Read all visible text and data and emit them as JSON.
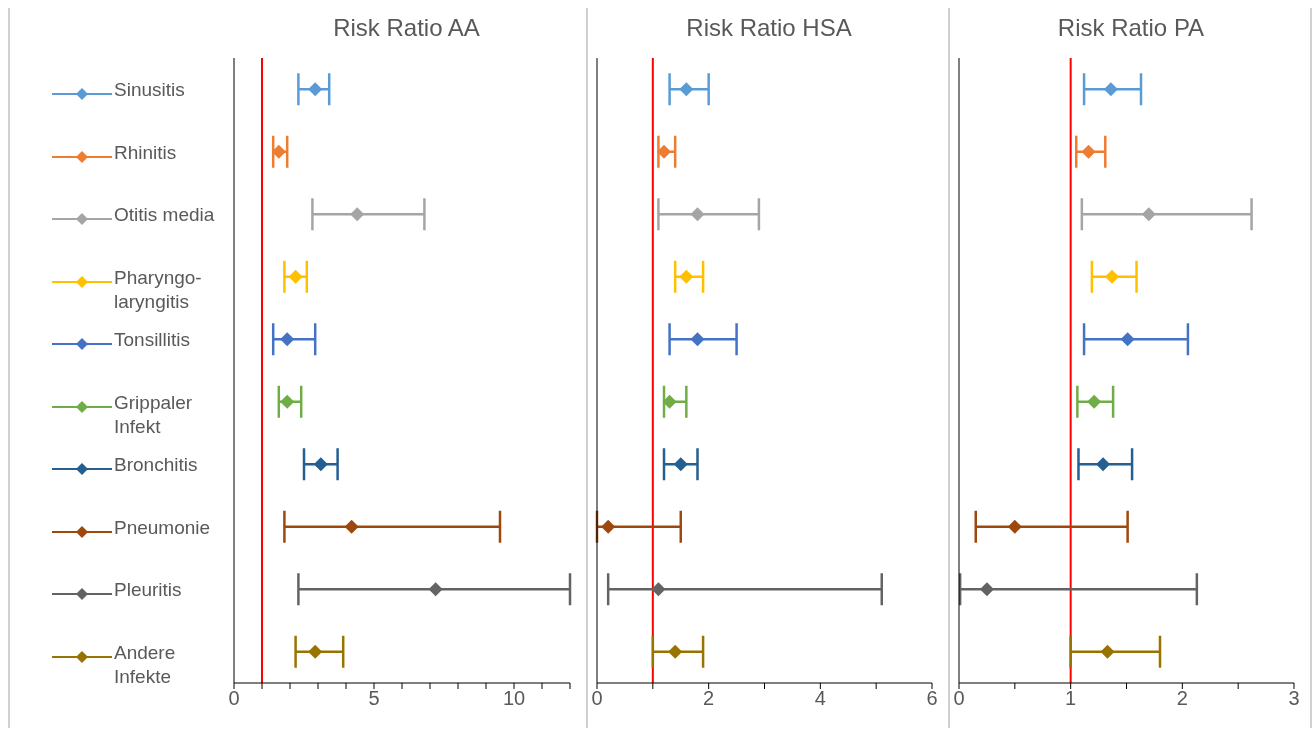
{
  "chart_data": [
    {
      "type": "line",
      "title": "Risk Ratio AA",
      "orientation": "horizontal",
      "categories": [
        null,
        null,
        null,
        null,
        null,
        null,
        null,
        null,
        null,
        null
      ],
      "xlim": [
        0,
        12
      ],
      "xticks": [
        0,
        {
          "value": 1,
          "label": null
        },
        {
          "value": 2,
          "label": null
        },
        {
          "value": 3,
          "label": null
        },
        {
          "value": 4,
          "label": null
        },
        5,
        {
          "value": 6,
          "label": null
        },
        {
          "value": 7,
          "label": null
        },
        {
          "value": 8,
          "label": null
        },
        {
          "value": 9,
          "label": null
        },
        10,
        {
          "value": 11,
          "label": null
        },
        {
          "value": 12,
          "label": null
        }
      ],
      "tick_labels": "x",
      "grid": false,
      "legend": "left",
      "marker": "diamond",
      "line_style": "solid",
      "ref_lines": [
        {
          "axis": "x",
          "value": 1,
          "color": "#ff0000"
        }
      ],
      "series": [
        {
          "name": "Sinusitis",
          "color": "#5b9bd5",
          "values": [
            2.9,
            null,
            null,
            null,
            null,
            null,
            null,
            null,
            null,
            null
          ],
          "errors": [
            [
              2.3,
              3.4
            ],
            null,
            null,
            null,
            null,
            null,
            null,
            null,
            null,
            null
          ]
        },
        {
          "name": "Rhinitis",
          "color": "#ed7d31",
          "values": [
            null,
            1.6,
            null,
            null,
            null,
            null,
            null,
            null,
            null,
            null
          ],
          "errors": [
            null,
            [
              1.4,
              1.9
            ],
            null,
            null,
            null,
            null,
            null,
            null,
            null,
            null
          ]
        },
        {
          "name": "Otitis media",
          "color": "#a5a5a5",
          "values": [
            null,
            null,
            4.4,
            null,
            null,
            null,
            null,
            null,
            null,
            null
          ],
          "errors": [
            null,
            null,
            [
              2.8,
              6.8
            ],
            null,
            null,
            null,
            null,
            null,
            null,
            null
          ]
        },
        {
          "name": "Pharyngo-laryngitis",
          "color": "#ffc000",
          "values": [
            null,
            null,
            null,
            2.2,
            null,
            null,
            null,
            null,
            null,
            null
          ],
          "errors": [
            null,
            null,
            null,
            [
              1.8,
              2.6
            ],
            null,
            null,
            null,
            null,
            null,
            null
          ]
        },
        {
          "name": "Tonsillitis",
          "color": "#4472c4",
          "values": [
            null,
            null,
            null,
            null,
            1.9,
            null,
            null,
            null,
            null,
            null
          ],
          "errors": [
            null,
            null,
            null,
            null,
            [
              1.4,
              2.9
            ],
            null,
            null,
            null,
            null,
            null
          ]
        },
        {
          "name": "Grippaler Infekt",
          "color": "#70ad47",
          "values": [
            null,
            null,
            null,
            null,
            null,
            1.9,
            null,
            null,
            null,
            null
          ],
          "errors": [
            null,
            null,
            null,
            null,
            null,
            [
              1.6,
              2.4
            ],
            null,
            null,
            null,
            null
          ]
        },
        {
          "name": "Bronchitis",
          "color": "#255e91",
          "values": [
            null,
            null,
            null,
            null,
            null,
            null,
            3.1,
            null,
            null,
            null
          ],
          "errors": [
            null,
            null,
            null,
            null,
            null,
            null,
            [
              2.5,
              3.7
            ],
            null,
            null,
            null
          ]
        },
        {
          "name": "Pneumonie",
          "color": "#9e480e",
          "values": [
            null,
            null,
            null,
            null,
            null,
            null,
            null,
            4.2,
            null,
            null
          ],
          "errors": [
            null,
            null,
            null,
            null,
            null,
            null,
            null,
            [
              1.8,
              9.5
            ],
            null,
            null
          ]
        },
        {
          "name": "Pleuritis",
          "color": "#636363",
          "values": [
            null,
            null,
            null,
            null,
            null,
            null,
            null,
            null,
            7.2,
            null
          ],
          "errors": [
            null,
            null,
            null,
            null,
            null,
            null,
            null,
            null,
            [
              2.3,
              12
            ],
            null
          ]
        },
        {
          "name": "Andere Infekte",
          "color": "#997300",
          "values": [
            null,
            null,
            null,
            null,
            null,
            null,
            null,
            null,
            null,
            2.9
          ],
          "errors": [
            null,
            null,
            null,
            null,
            null,
            null,
            null,
            null,
            null,
            [
              2.2,
              3.9
            ]
          ]
        }
      ]
    },
    {
      "type": "line",
      "title": "Risk Ratio HSA",
      "orientation": "horizontal",
      "categories": [
        null,
        null,
        null,
        null,
        null,
        null,
        null,
        null,
        null,
        null
      ],
      "xlim": [
        0,
        6
      ],
      "xticks": [
        0,
        {
          "value": 1,
          "label": null
        },
        2,
        {
          "value": 3,
          "label": null
        },
        4,
        {
          "value": 5,
          "label": null
        },
        6
      ],
      "tick_labels": "x",
      "grid": false,
      "marker": "diamond",
      "line_style": "solid",
      "ref_lines": [
        {
          "axis": "x",
          "value": 1,
          "color": "#ff0000"
        }
      ],
      "series": [
        {
          "color": "#5b9bd5",
          "values": [
            1.6,
            null,
            null,
            null,
            null,
            null,
            null,
            null,
            null,
            null
          ],
          "errors": [
            [
              1.3,
              2.0
            ],
            null,
            null,
            null,
            null,
            null,
            null,
            null,
            null,
            null
          ]
        },
        {
          "color": "#ed7d31",
          "values": [
            null,
            1.2,
            null,
            null,
            null,
            null,
            null,
            null,
            null,
            null
          ],
          "errors": [
            null,
            [
              1.1,
              1.4
            ],
            null,
            null,
            null,
            null,
            null,
            null,
            null,
            null
          ]
        },
        {
          "color": "#a5a5a5",
          "values": [
            null,
            null,
            1.8,
            null,
            null,
            null,
            null,
            null,
            null,
            null
          ],
          "errors": [
            null,
            null,
            [
              1.1,
              2.9
            ],
            null,
            null,
            null,
            null,
            null,
            null,
            null
          ]
        },
        {
          "color": "#ffc000",
          "values": [
            null,
            null,
            null,
            1.6,
            null,
            null,
            null,
            null,
            null,
            null
          ],
          "errors": [
            null,
            null,
            null,
            [
              1.4,
              1.9
            ],
            null,
            null,
            null,
            null,
            null,
            null
          ]
        },
        {
          "color": "#4472c4",
          "values": [
            null,
            null,
            null,
            null,
            1.8,
            null,
            null,
            null,
            null,
            null
          ],
          "errors": [
            null,
            null,
            null,
            null,
            [
              1.3,
              2.5
            ],
            null,
            null,
            null,
            null,
            null
          ]
        },
        {
          "color": "#70ad47",
          "values": [
            null,
            null,
            null,
            null,
            null,
            1.3,
            null,
            null,
            null,
            null
          ],
          "errors": [
            null,
            null,
            null,
            null,
            null,
            [
              1.2,
              1.6
            ],
            null,
            null,
            null,
            null
          ]
        },
        {
          "color": "#255e91",
          "values": [
            null,
            null,
            null,
            null,
            null,
            null,
            1.5,
            null,
            null,
            null
          ],
          "errors": [
            null,
            null,
            null,
            null,
            null,
            null,
            [
              1.2,
              1.8
            ],
            null,
            null,
            null
          ]
        },
        {
          "color": "#9e480e",
          "values": [
            null,
            null,
            null,
            null,
            null,
            null,
            null,
            0.2,
            null,
            null
          ],
          "errors": [
            null,
            null,
            null,
            null,
            null,
            null,
            null,
            [
              0,
              1.5
            ],
            null,
            null
          ]
        },
        {
          "color": "#636363",
          "values": [
            null,
            null,
            null,
            null,
            null,
            null,
            null,
            null,
            1.1,
            null
          ],
          "errors": [
            null,
            null,
            null,
            null,
            null,
            null,
            null,
            null,
            [
              0.2,
              5.1
            ],
            null
          ]
        },
        {
          "color": "#997300",
          "values": [
            null,
            null,
            null,
            null,
            null,
            null,
            null,
            null,
            null,
            1.4
          ],
          "errors": [
            null,
            null,
            null,
            null,
            null,
            null,
            null,
            null,
            null,
            [
              1.0,
              1.9
            ]
          ]
        }
      ]
    },
    {
      "type": "line",
      "title": "Risk Ratio PA",
      "orientation": "horizontal",
      "categories": [
        null,
        null,
        null,
        null,
        null,
        null,
        null,
        null,
        null,
        null
      ],
      "xlim": [
        0,
        3
      ],
      "xticks": [
        0,
        {
          "value": 0.5,
          "label": null
        },
        1,
        {
          "value": 1.5,
          "label": null
        },
        2,
        {
          "value": 2.5,
          "label": null
        },
        3
      ],
      "tick_labels": "x",
      "grid": false,
      "marker": "diamond",
      "line_style": "solid",
      "ref_lines": [
        {
          "axis": "x",
          "value": 1,
          "color": "#ff0000"
        }
      ],
      "series": [
        {
          "color": "#5b9bd5",
          "values": [
            1.36,
            null,
            null,
            null,
            null,
            null,
            null,
            null,
            null,
            null
          ],
          "errors": [
            [
              1.12,
              1.63
            ],
            null,
            null,
            null,
            null,
            null,
            null,
            null,
            null,
            null
          ]
        },
        {
          "color": "#ed7d31",
          "values": [
            null,
            1.16,
            null,
            null,
            null,
            null,
            null,
            null,
            null,
            null
          ],
          "errors": [
            null,
            [
              1.05,
              1.31
            ],
            null,
            null,
            null,
            null,
            null,
            null,
            null,
            null
          ]
        },
        {
          "color": "#a5a5a5",
          "values": [
            null,
            null,
            1.7,
            null,
            null,
            null,
            null,
            null,
            null,
            null
          ],
          "errors": [
            null,
            null,
            [
              1.1,
              2.62
            ],
            null,
            null,
            null,
            null,
            null,
            null,
            null
          ]
        },
        {
          "color": "#ffc000",
          "values": [
            null,
            null,
            null,
            1.37,
            null,
            null,
            null,
            null,
            null,
            null
          ],
          "errors": [
            null,
            null,
            null,
            [
              1.19,
              1.59
            ],
            null,
            null,
            null,
            null,
            null,
            null
          ]
        },
        {
          "color": "#4472c4",
          "values": [
            null,
            null,
            null,
            null,
            1.51,
            null,
            null,
            null,
            null,
            null
          ],
          "errors": [
            null,
            null,
            null,
            null,
            [
              1.12,
              2.05
            ],
            null,
            null,
            null,
            null,
            null
          ]
        },
        {
          "color": "#70ad47",
          "values": [
            null,
            null,
            null,
            null,
            null,
            1.21,
            null,
            null,
            null,
            null
          ],
          "errors": [
            null,
            null,
            null,
            null,
            null,
            [
              1.06,
              1.38
            ],
            null,
            null,
            null,
            null
          ]
        },
        {
          "color": "#255e91",
          "values": [
            null,
            null,
            null,
            null,
            null,
            null,
            1.29,
            null,
            null,
            null
          ],
          "errors": [
            null,
            null,
            null,
            null,
            null,
            null,
            [
              1.07,
              1.55
            ],
            null,
            null,
            null
          ]
        },
        {
          "color": "#9e480e",
          "values": [
            null,
            null,
            null,
            null,
            null,
            null,
            null,
            0.5,
            null,
            null
          ],
          "errors": [
            null,
            null,
            null,
            null,
            null,
            null,
            null,
            [
              0.15,
              1.51
            ],
            null,
            null
          ]
        },
        {
          "color": "#636363",
          "values": [
            null,
            null,
            null,
            null,
            null,
            null,
            null,
            null,
            0.25,
            null
          ],
          "errors": [
            null,
            null,
            null,
            null,
            null,
            null,
            null,
            null,
            [
              0.01,
              2.13
            ],
            null
          ]
        },
        {
          "color": "#997300",
          "values": [
            null,
            null,
            null,
            null,
            null,
            null,
            null,
            null,
            null,
            1.33
          ],
          "errors": [
            null,
            null,
            null,
            null,
            null,
            null,
            null,
            null,
            null,
            [
              1.0,
              1.8
            ]
          ]
        }
      ]
    }
  ]
}
